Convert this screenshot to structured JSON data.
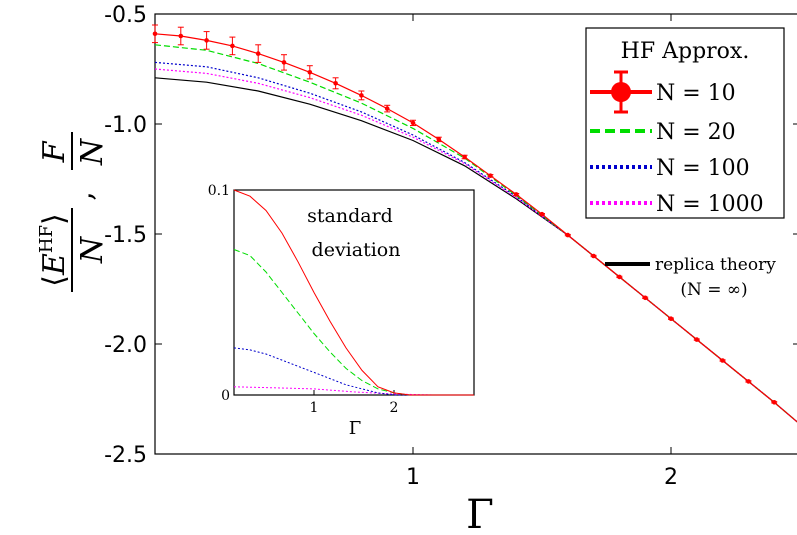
{
  "chart_data": [
    {
      "type": "line",
      "xlabel": "Γ",
      "ylabel": "⟨E^HF⟩/N , F/N",
      "xlim": [
        0,
        2.5
      ],
      "ylim": [
        -2.5,
        -0.5
      ],
      "xticks": [
        1,
        2
      ],
      "xtick_labels": [
        "1",
        "2"
      ],
      "yticks": [
        -0.5,
        -1.0,
        -1.5,
        -2.0,
        -2.5
      ],
      "ytick_labels": [
        "-0.5",
        "-1.0",
        "-1.5",
        "-2.0",
        "-2.5"
      ],
      "grid": false,
      "legend": {
        "title": "HF Approx.",
        "placement": "top-right",
        "entries": [
          "N = 10",
          "N = 20",
          "N = 100",
          "N = 1000"
        ]
      },
      "extra_legend": {
        "line1": "replica theory",
        "line2": "(N = ∞)"
      },
      "series": [
        {
          "name": "N = 10",
          "color": "#ff0000",
          "style": "solid-errorbars",
          "x": [
            0,
            0.1,
            0.2,
            0.3,
            0.4,
            0.5,
            0.6,
            0.7,
            0.8,
            0.9,
            1.0,
            1.1,
            1.2,
            1.3,
            1.4,
            1.5,
            1.6,
            1.7,
            1.8,
            1.9,
            2.0,
            2.1,
            2.2,
            2.3,
            2.4,
            2.5
          ],
          "y": [
            -0.59,
            -0.6,
            -0.62,
            -0.645,
            -0.68,
            -0.72,
            -0.765,
            -0.815,
            -0.87,
            -0.93,
            -0.995,
            -1.07,
            -1.15,
            -1.235,
            -1.32,
            -1.41,
            -1.505,
            -1.6,
            -1.695,
            -1.79,
            -1.885,
            -1.98,
            -2.075,
            -2.17,
            -2.265,
            -2.365
          ],
          "err": [
            0.04,
            0.04,
            0.04,
            0.04,
            0.04,
            0.035,
            0.03,
            0.025,
            0.02,
            0.015,
            0.012,
            0.01,
            0.008,
            0.005,
            0.004,
            0.003,
            0.003,
            0.003,
            0.003,
            0.003,
            0.003,
            0.003,
            0.003,
            0.003,
            0.003,
            0.003
          ]
        },
        {
          "name": "N = 20",
          "color": "#00dd00",
          "style": "dashed",
          "x": [
            0,
            0.2,
            0.4,
            0.6,
            0.8,
            1.0,
            1.2,
            1.4,
            1.6,
            1.8,
            2.0,
            2.2,
            2.4,
            2.5
          ],
          "y": [
            -0.64,
            -0.665,
            -0.725,
            -0.81,
            -0.905,
            -1.02,
            -1.155,
            -1.325,
            -1.505,
            -1.695,
            -1.885,
            -2.075,
            -2.265,
            -2.365
          ]
        },
        {
          "name": "N = 100",
          "color": "#0000cc",
          "style": "dotted",
          "x": [
            0,
            0.2,
            0.4,
            0.6,
            0.8,
            1.0,
            1.2,
            1.4,
            1.6,
            1.8,
            2.0,
            2.2,
            2.4,
            2.5
          ],
          "y": [
            -0.72,
            -0.74,
            -0.79,
            -0.86,
            -0.945,
            -1.05,
            -1.175,
            -1.33,
            -1.505,
            -1.695,
            -1.885,
            -2.075,
            -2.265,
            -2.365
          ]
        },
        {
          "name": "N = 1000",
          "color": "#ff00ff",
          "style": "dotted",
          "x": [
            0,
            0.2,
            0.4,
            0.6,
            0.8,
            1.0,
            1.2,
            1.4,
            1.6,
            1.8,
            2.0,
            2.2,
            2.4,
            2.5
          ],
          "y": [
            -0.75,
            -0.77,
            -0.815,
            -0.88,
            -0.96,
            -1.06,
            -1.18,
            -1.335,
            -1.505,
            -1.695,
            -1.885,
            -2.075,
            -2.265,
            -2.365
          ]
        },
        {
          "name": "replica theory (N = ∞)",
          "color": "#000000",
          "style": "solid",
          "x": [
            0,
            0.2,
            0.4,
            0.6,
            0.8,
            1.0,
            1.2,
            1.4,
            1.6,
            1.8,
            2.0,
            2.2,
            2.4,
            2.5
          ],
          "y": [
            -0.79,
            -0.81,
            -0.85,
            -0.91,
            -0.985,
            -1.075,
            -1.19,
            -1.34,
            -1.505,
            -1.695,
            -1.885,
            -2.075,
            -2.265,
            -2.365
          ]
        }
      ]
    },
    {
      "type": "line",
      "title": "standard deviation",
      "title_line1": "standard",
      "title_line2": "deviation",
      "xlabel": "Γ",
      "xlim": [
        0,
        3
      ],
      "ylim": [
        0,
        0.1
      ],
      "xticks": [
        1,
        2
      ],
      "xtick_labels": [
        "1",
        "2"
      ],
      "yticks": [
        0,
        0.1
      ],
      "ytick_labels": [
        "0",
        "0.1"
      ],
      "series": [
        {
          "name": "N = 10",
          "color": "#ff0000",
          "style": "solid",
          "x": [
            0,
            0.2,
            0.4,
            0.6,
            0.8,
            1.0,
            1.2,
            1.4,
            1.6,
            1.8,
            2.0,
            2.2,
            2.5,
            3.0
          ],
          "y": [
            0.1,
            0.097,
            0.09,
            0.079,
            0.065,
            0.05,
            0.036,
            0.023,
            0.012,
            0.004,
            0.001,
            0.0,
            0.0,
            0.0
          ]
        },
        {
          "name": "N = 20",
          "color": "#00dd00",
          "style": "dashed",
          "x": [
            0,
            0.2,
            0.4,
            0.6,
            0.8,
            1.0,
            1.2,
            1.4,
            1.6,
            1.8,
            2.0,
            2.2,
            2.5,
            3.0
          ],
          "y": [
            0.071,
            0.068,
            0.06,
            0.05,
            0.04,
            0.03,
            0.021,
            0.013,
            0.007,
            0.003,
            0.001,
            0.0,
            0.0,
            0.0
          ]
        },
        {
          "name": "N = 100",
          "color": "#0000cc",
          "style": "dotted",
          "x": [
            0,
            0.2,
            0.4,
            0.6,
            0.8,
            1.0,
            1.2,
            1.4,
            1.6,
            1.8,
            2.0,
            2.2,
            2.5,
            3.0
          ],
          "y": [
            0.023,
            0.022,
            0.02,
            0.017,
            0.014,
            0.011,
            0.008,
            0.005,
            0.003,
            0.001,
            0.0,
            0.0,
            0.0,
            0.0
          ]
        },
        {
          "name": "N = 1000",
          "color": "#ff00ff",
          "style": "dotted",
          "x": [
            0,
            0.5,
            1.0,
            1.5,
            2.0,
            2.5,
            3.0
          ],
          "y": [
            0.004,
            0.0035,
            0.003,
            0.0015,
            0.0005,
            0.0,
            0.0
          ]
        }
      ]
    }
  ]
}
